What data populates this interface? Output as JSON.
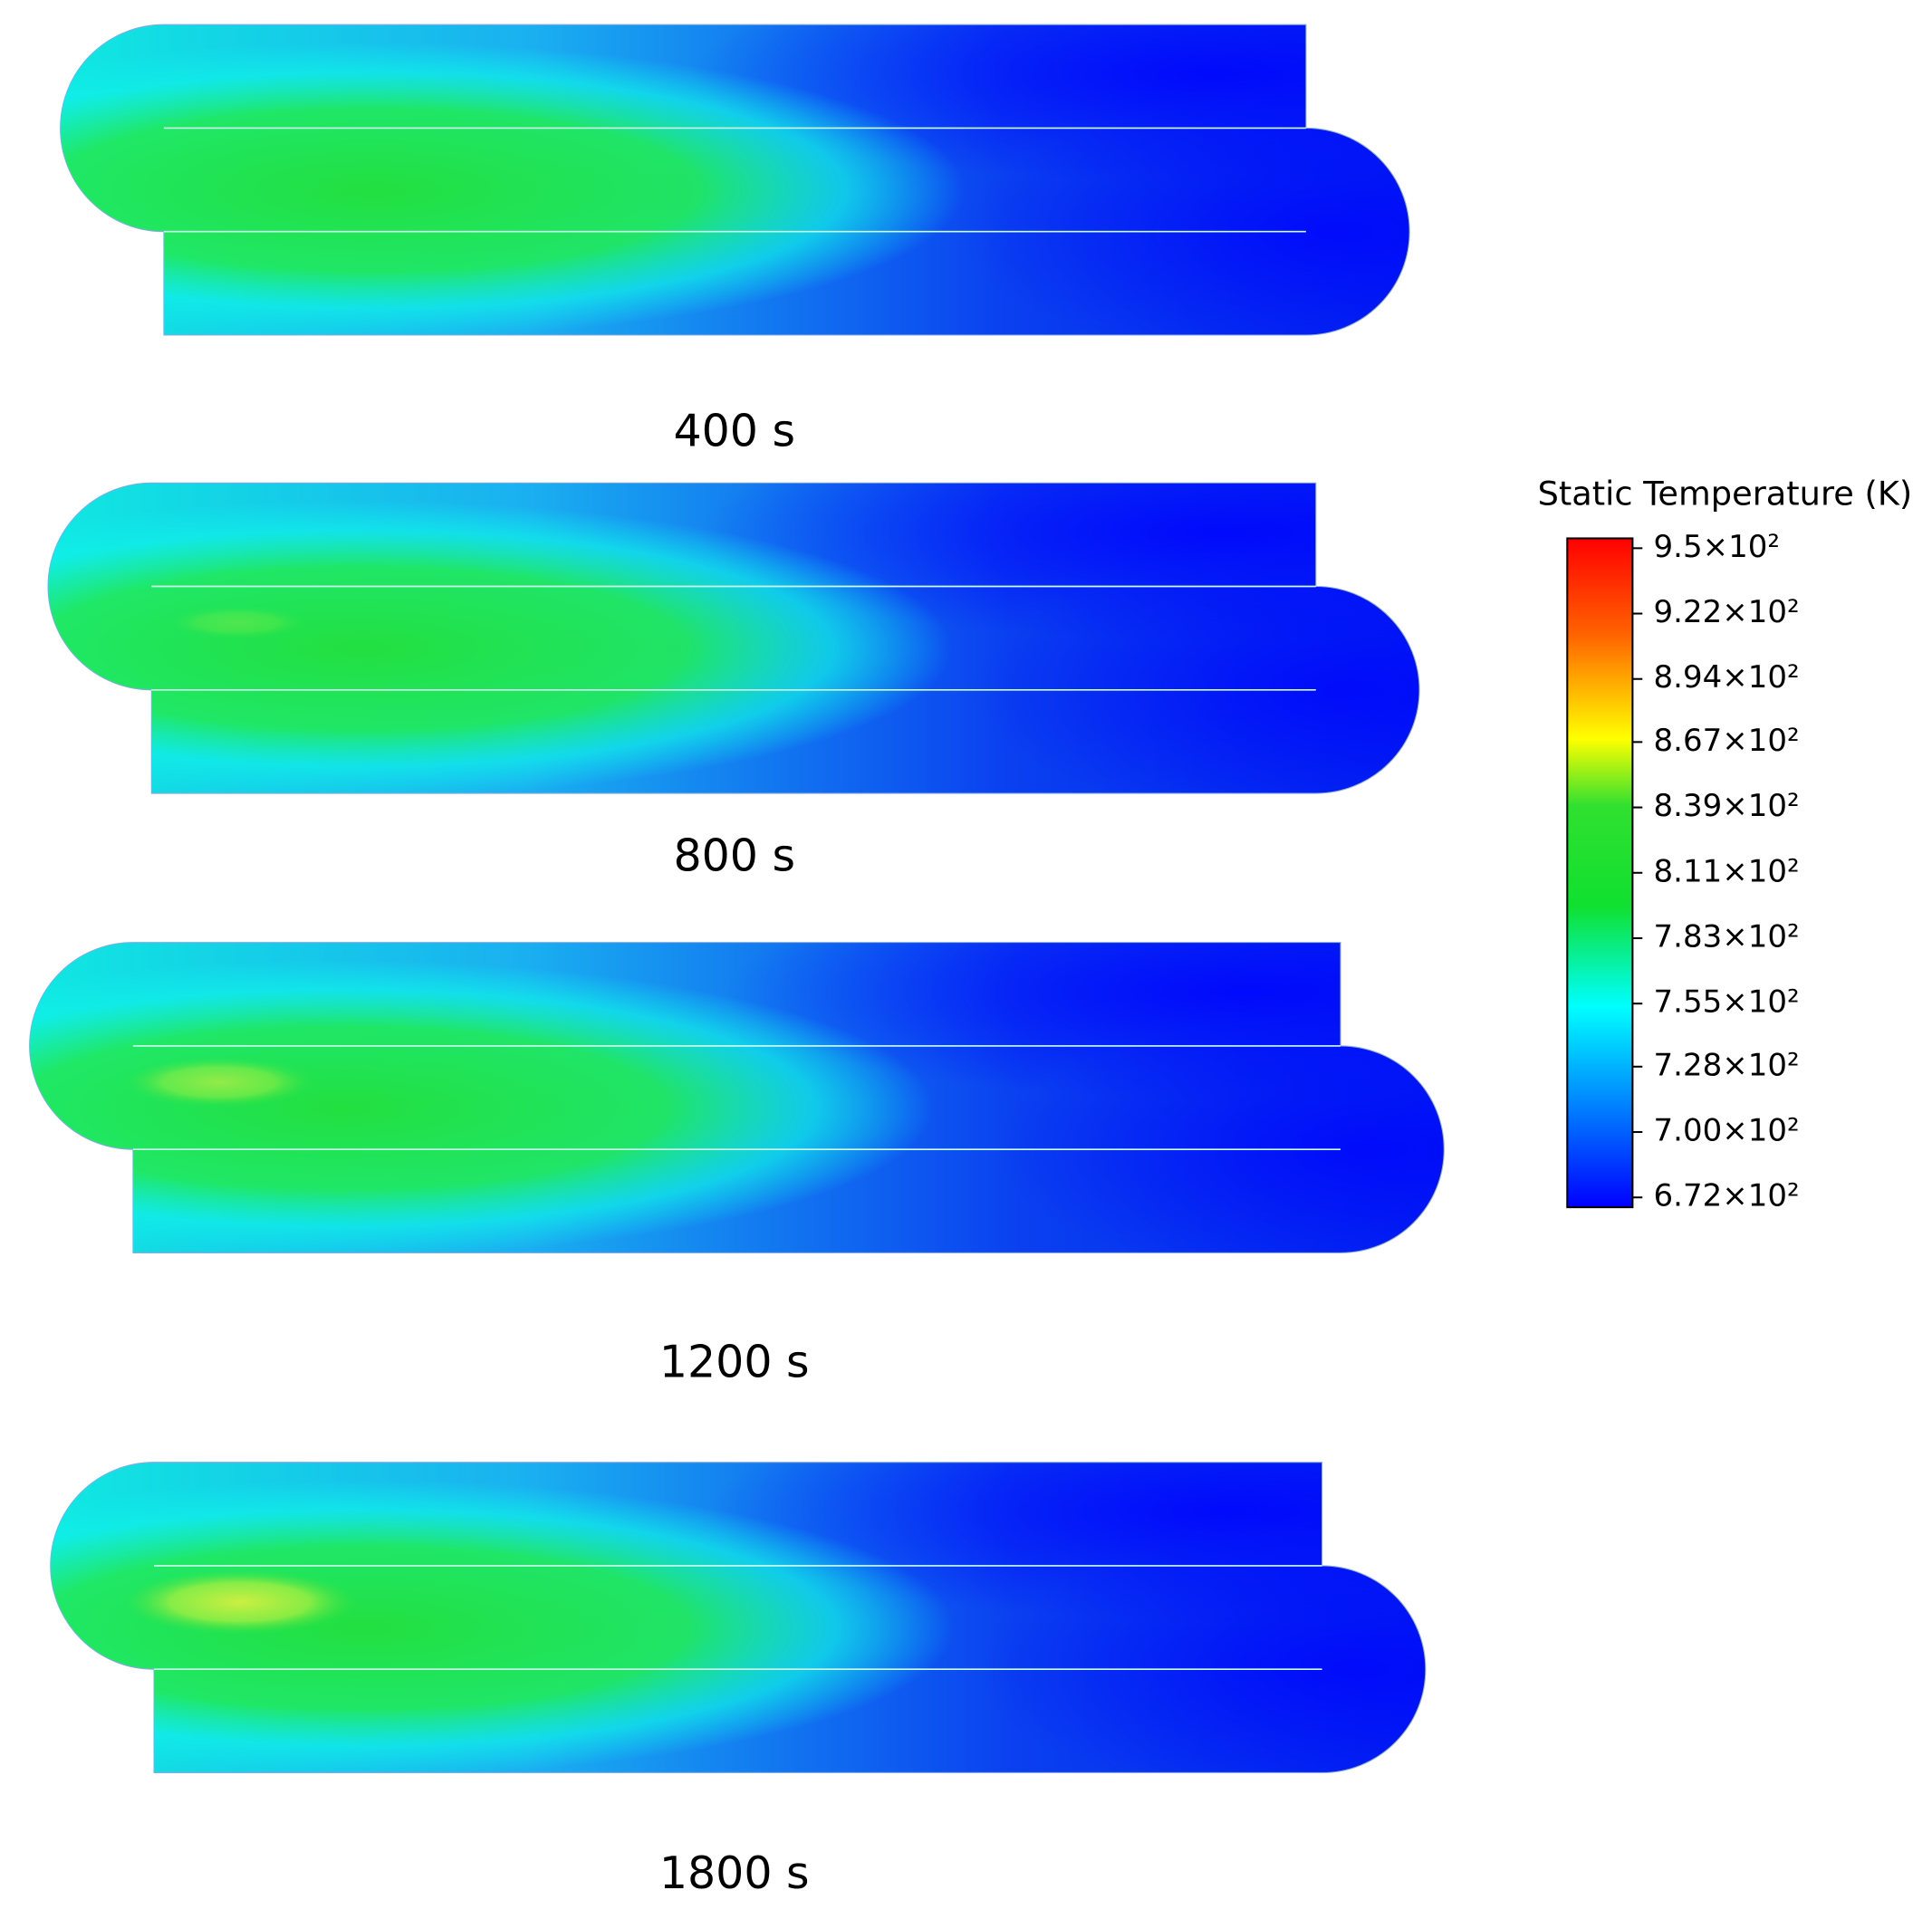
{
  "panels": [
    {
      "label": "400 s"
    },
    {
      "label": "800 s"
    },
    {
      "label": "1200 s"
    },
    {
      "label": "1800 s"
    }
  ],
  "legend": {
    "title": "Static Temperature (K)",
    "ticks": [
      {
        "value": 950,
        "label": "9.5×10²"
      },
      {
        "value": 922,
        "label": "9.22×10²"
      },
      {
        "value": 894,
        "label": "8.94×10²"
      },
      {
        "value": 867,
        "label": "8.67×10²"
      },
      {
        "value": 839,
        "label": "8.39×10²"
      },
      {
        "value": 811,
        "label": "8.11×10²"
      },
      {
        "value": 783,
        "label": "7.83×10²"
      },
      {
        "value": 755,
        "label": "7.55×10²"
      },
      {
        "value": 728,
        "label": "7.28×10²"
      },
      {
        "value": 700,
        "label": "7.00×10²"
      },
      {
        "value": 672,
        "label": "6.72×10²"
      }
    ]
  }
}
